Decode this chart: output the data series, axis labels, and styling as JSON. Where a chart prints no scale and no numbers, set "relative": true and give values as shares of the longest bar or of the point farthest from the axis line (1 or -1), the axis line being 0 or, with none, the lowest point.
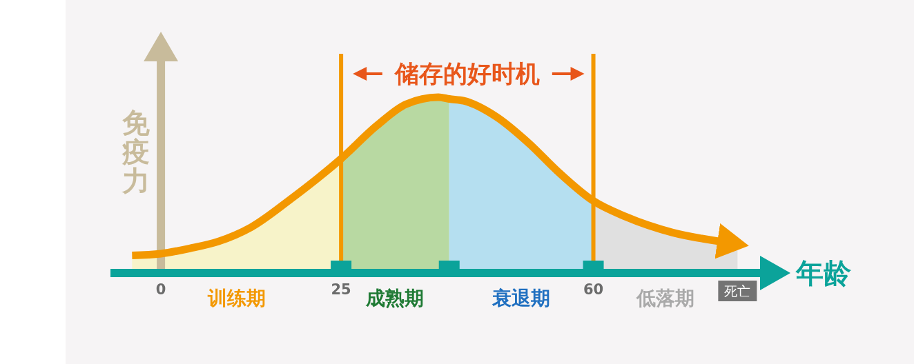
{
  "chart_data": {
    "type": "area",
    "relative": true,
    "xlabel": "年龄",
    "ylabel": "免疫力",
    "xlim": [
      -7,
      86
    ],
    "xticks": [
      0,
      25,
      60
    ],
    "series": [
      {
        "name": "训练期",
        "color": "#f7f3c9",
        "x": [
          -4,
          4,
          8,
          12.5,
          18,
          25
        ],
        "values": [
          0.1,
          0.14,
          0.18,
          0.26,
          0.42,
          0.65
        ]
      },
      {
        "name": "成熟期",
        "color": "#b8d9a2",
        "x": [
          25,
          30,
          34,
          38.5,
          40
        ],
        "values": [
          0.65,
          0.84,
          0.96,
          1,
          0.99
        ]
      },
      {
        "name": "衰退期",
        "color": "#b5dff0",
        "x": [
          40,
          42,
          46.5,
          51,
          55,
          60
        ],
        "values": [
          0.99,
          0.98,
          0.89,
          0.74,
          0.58,
          0.41
        ]
      },
      {
        "name": "低落期",
        "color": "#e0e0e0",
        "x": [
          60,
          64.5,
          71,
          77.5,
          80
        ],
        "values": [
          0.41,
          0.32,
          0.23,
          0.18,
          0.17
        ]
      },
      {
        "type": "line",
        "color": "#f39800",
        "x": [
          -4,
          0,
          4,
          8,
          12.5,
          18,
          25,
          30,
          34,
          38.5,
          40,
          42,
          46.5,
          51,
          55,
          60,
          64.5,
          71,
          77.5
        ],
        "values": [
          0.1,
          0.11,
          0.14,
          0.18,
          0.26,
          0.42,
          0.65,
          0.84,
          0.96,
          1,
          0.99,
          0.98,
          0.89,
          0.74,
          0.58,
          0.41,
          0.32,
          0.23,
          0.18
        ]
      }
    ],
    "ref_lines": [
      {
        "axis": "x",
        "value": 25,
        "color": "#f39800"
      },
      {
        "axis": "x",
        "value": 60,
        "color": "#f39800"
      }
    ],
    "annotations": [
      "储存的好时机",
      "死亡"
    ]
  }
}
